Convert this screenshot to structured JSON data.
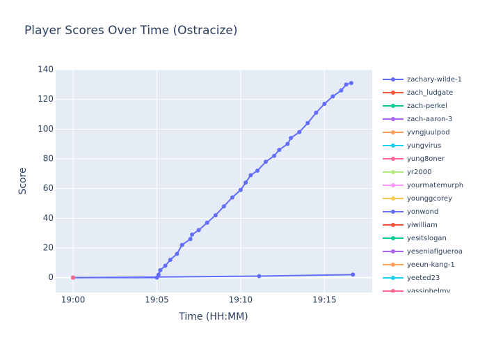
{
  "chart_data": {
    "type": "line",
    "title": "Player Scores Over Time (Ostracize)",
    "x_label": "Time (HH:MM)",
    "y_label": "Score",
    "xlim": [
      -1.04,
      17.85
    ],
    "ylim": [
      -10,
      140
    ],
    "xticks": [
      {
        "value": 0,
        "label": "19:00"
      },
      {
        "value": 5,
        "label": "19:05"
      },
      {
        "value": 10,
        "label": "19:10"
      },
      {
        "value": 15,
        "label": "19:15"
      }
    ],
    "yticks": [
      0,
      20,
      40,
      60,
      80,
      100,
      120,
      140
    ],
    "grid": true,
    "legend": "right",
    "series": [
      {
        "name": "zachary-wilde-1",
        "color": "#636efa",
        "x": [
          0,
          5.0,
          5.1,
          5.2,
          5.5,
          5.8,
          6.2,
          6.5,
          7.0,
          7.1,
          7.5,
          8.0,
          8.5,
          9.0,
          9.5,
          10.0,
          10.3,
          10.6,
          11.0,
          11.5,
          12.0,
          12.3,
          12.8,
          13.0,
          13.5,
          14.0,
          14.5,
          15.0,
          15.5,
          16.0,
          16.3,
          16.6
        ],
        "values": [
          0,
          0,
          2,
          5,
          8,
          12,
          16,
          22,
          26,
          29,
          32,
          37,
          42,
          48,
          54,
          59,
          64,
          69,
          72,
          78,
          82,
          86,
          90,
          94,
          98,
          104,
          111,
          117,
          122,
          126,
          130,
          131
        ]
      },
      {
        "name": "zach_ludgate",
        "color": "#EF553B",
        "x": [
          0
        ],
        "values": [
          0
        ]
      },
      {
        "name": "zach-perkel",
        "color": "#00cc96",
        "x": [
          0
        ],
        "values": [
          0
        ]
      },
      {
        "name": "zach-aaron-3",
        "color": "#ab63fa",
        "x": [
          0
        ],
        "values": [
          0
        ]
      },
      {
        "name": "yvngjuulpod",
        "color": "#FFA15A",
        "x": [
          0
        ],
        "values": [
          0
        ]
      },
      {
        "name": "yungvirus",
        "color": "#19d3f3",
        "x": [
          0
        ],
        "values": [
          0
        ]
      },
      {
        "name": "yung8oner",
        "color": "#FF6692",
        "x": [
          0
        ],
        "values": [
          0
        ]
      },
      {
        "name": "yr2000",
        "color": "#B6E880",
        "x": [
          0
        ],
        "values": [
          0
        ]
      },
      {
        "name": "yourmatemurph",
        "color": "#FF97FF",
        "x": [
          0
        ],
        "values": [
          0
        ]
      },
      {
        "name": "younggcorey",
        "color": "#FECB52",
        "x": [
          0
        ],
        "values": [
          0
        ]
      },
      {
        "name": "yonwond",
        "color": "#636efa",
        "x": [
          0,
          11.1,
          16.7
        ],
        "values": [
          0,
          1,
          2
        ]
      },
      {
        "name": "yiwilliam",
        "color": "#EF553B",
        "x": [
          0
        ],
        "values": [
          0
        ]
      },
      {
        "name": "yesitslogan",
        "color": "#00cc96",
        "x": [
          0
        ],
        "values": [
          0
        ]
      },
      {
        "name": "yeseniafigueroa",
        "color": "#ab63fa",
        "x": [
          0
        ],
        "values": [
          0
        ]
      },
      {
        "name": "yeeun-kang-1",
        "color": "#FFA15A",
        "x": [
          0
        ],
        "values": [
          0
        ]
      },
      {
        "name": "yeeted23",
        "color": "#19d3f3",
        "x": [
          0
        ],
        "values": [
          0
        ]
      },
      {
        "name": "yassinhelmy",
        "color": "#FF6692",
        "x": [
          0
        ],
        "values": [
          0
        ]
      }
    ]
  }
}
